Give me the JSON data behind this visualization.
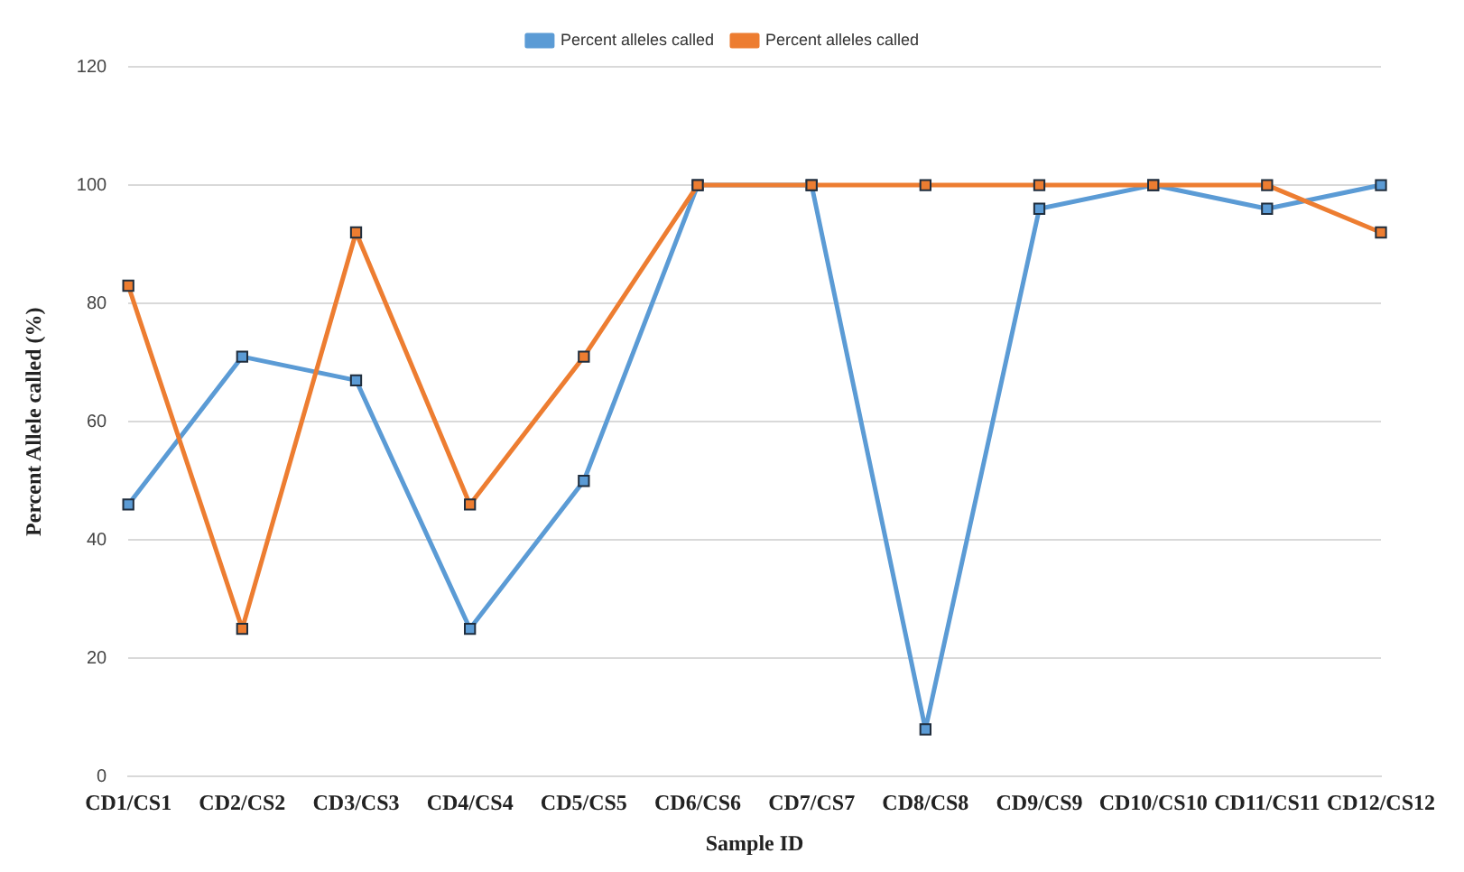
{
  "chart_data": {
    "type": "line",
    "xlabel": "Sample ID",
    "ylabel": "Percent Allele called (%)",
    "categories": [
      "CD1/CS1",
      "CD2/CS2",
      "CD3/CS3",
      "CD4/CS4",
      "CD5/CS5",
      "CD6/CS6",
      "CD7/CS7",
      "CD8/CS8",
      "CD9/CS9",
      "CD10/CS10",
      "CD11/CS11",
      "CD12/CS12"
    ],
    "series": [
      {
        "name": "Percent alleles called",
        "color": "#5b9bd5",
        "values": [
          46,
          71,
          67,
          25,
          50,
          100,
          100,
          8,
          96,
          100,
          96,
          100
        ]
      },
      {
        "name": "Percent alleles called",
        "color": "#ed7d31",
        "values": [
          83,
          25,
          92,
          46,
          71,
          100,
          100,
          100,
          100,
          100,
          100,
          92
        ]
      }
    ],
    "ylim": [
      0,
      120
    ],
    "yticks": [
      0,
      20,
      40,
      60,
      80,
      100,
      120
    ],
    "grid": "y",
    "legend": "top",
    "marker": "square",
    "line_style": "solid"
  }
}
